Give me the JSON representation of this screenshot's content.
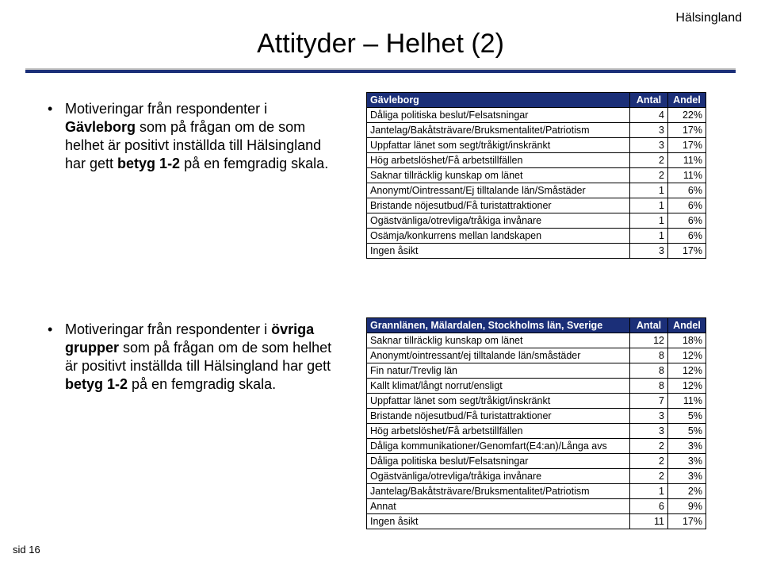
{
  "header_region": "Hälsingland",
  "title": "Attityder – Helhet (2)",
  "bullet1": {
    "pre": "Motiveringar från respondenter i ",
    "group": "Gävleborg",
    "mid": " som på frågan om de som helhet är positivt inställda till Hälsingland har gett ",
    "rating": "betyg 1-2",
    "post": " på en femgradig skala."
  },
  "bullet2": {
    "pre": "Motiveringar från respondenter i ",
    "group": "övriga grupper",
    "mid": " som på frågan om de som helhet är positivt inställda till Hälsingland har gett ",
    "rating": "betyg 1-2",
    "post": " på en femgradig skala."
  },
  "table1": {
    "header": [
      "Gävleborg",
      "Antal",
      "Andel"
    ],
    "rows": [
      [
        "Dåliga politiska beslut/Felsatsningar",
        "4",
        "22%"
      ],
      [
        "Jantelag/Bakåtsträvare/Bruksmentalitet/Patriotism",
        "3",
        "17%"
      ],
      [
        "Uppfattar länet som segt/tråkigt/inskränkt",
        "3",
        "17%"
      ],
      [
        "Hög arbetslöshet/Få arbetstillfällen",
        "2",
        "11%"
      ],
      [
        "Saknar tillräcklig kunskap om länet",
        "2",
        "11%"
      ],
      [
        "Anonymt/Ointressant/Ej tilltalande län/Småstäder",
        "1",
        "6%"
      ],
      [
        "Bristande nöjesutbud/Få turistattraktioner",
        "1",
        "6%"
      ],
      [
        "Ogästvänliga/otrevliga/tråkiga invånare",
        "1",
        "6%"
      ],
      [
        "Osämja/konkurrens mellan landskapen",
        "1",
        "6%"
      ],
      [
        "Ingen åsikt",
        "3",
        "17%"
      ]
    ]
  },
  "table2": {
    "header": [
      "Grannlänen, Mälardalen, Stockholms län, Sverige",
      "Antal",
      "Andel"
    ],
    "rows": [
      [
        "Saknar tillräcklig kunskap om länet",
        "12",
        "18%"
      ],
      [
        "Anonymt/ointressant/ej tilltalande län/småstäder",
        "8",
        "12%"
      ],
      [
        "Fin natur/Trevlig län",
        "8",
        "12%"
      ],
      [
        "Kallt klimat/långt norrut/ensligt",
        "8",
        "12%"
      ],
      [
        "Uppfattar länet som segt/tråkigt/inskränkt",
        "7",
        "11%"
      ],
      [
        "Bristande nöjesutbud/Få turistattraktioner",
        "3",
        "5%"
      ],
      [
        "Hög arbetslöshet/Få arbetstillfällen",
        "3",
        "5%"
      ],
      [
        "Dåliga kommunikationer/Genomfart(E4:an)/Långa avs",
        "2",
        "3%"
      ],
      [
        "Dåliga politiska beslut/Felsatsningar",
        "2",
        "3%"
      ],
      [
        "Ogästvänliga/otrevliga/tråkiga invånare",
        "2",
        "3%"
      ],
      [
        "Jantelag/Bakåtsträvare/Bruksmentalitet/Patriotism",
        "1",
        "2%"
      ],
      [
        "Annat",
        "6",
        "9%"
      ],
      [
        "Ingen åsikt",
        "11",
        "17%"
      ]
    ]
  },
  "footer": "sid 16",
  "colors": {
    "header_bg": "#1b2f78",
    "header_fg": "#ffffff",
    "rule_top": "#bfbfbf",
    "border": "#000000",
    "text": "#000000",
    "page_bg": "#ffffff"
  },
  "fonts": {
    "title_size": 34,
    "body_size": 18,
    "table_size": 12.5,
    "footer_size": 13
  }
}
